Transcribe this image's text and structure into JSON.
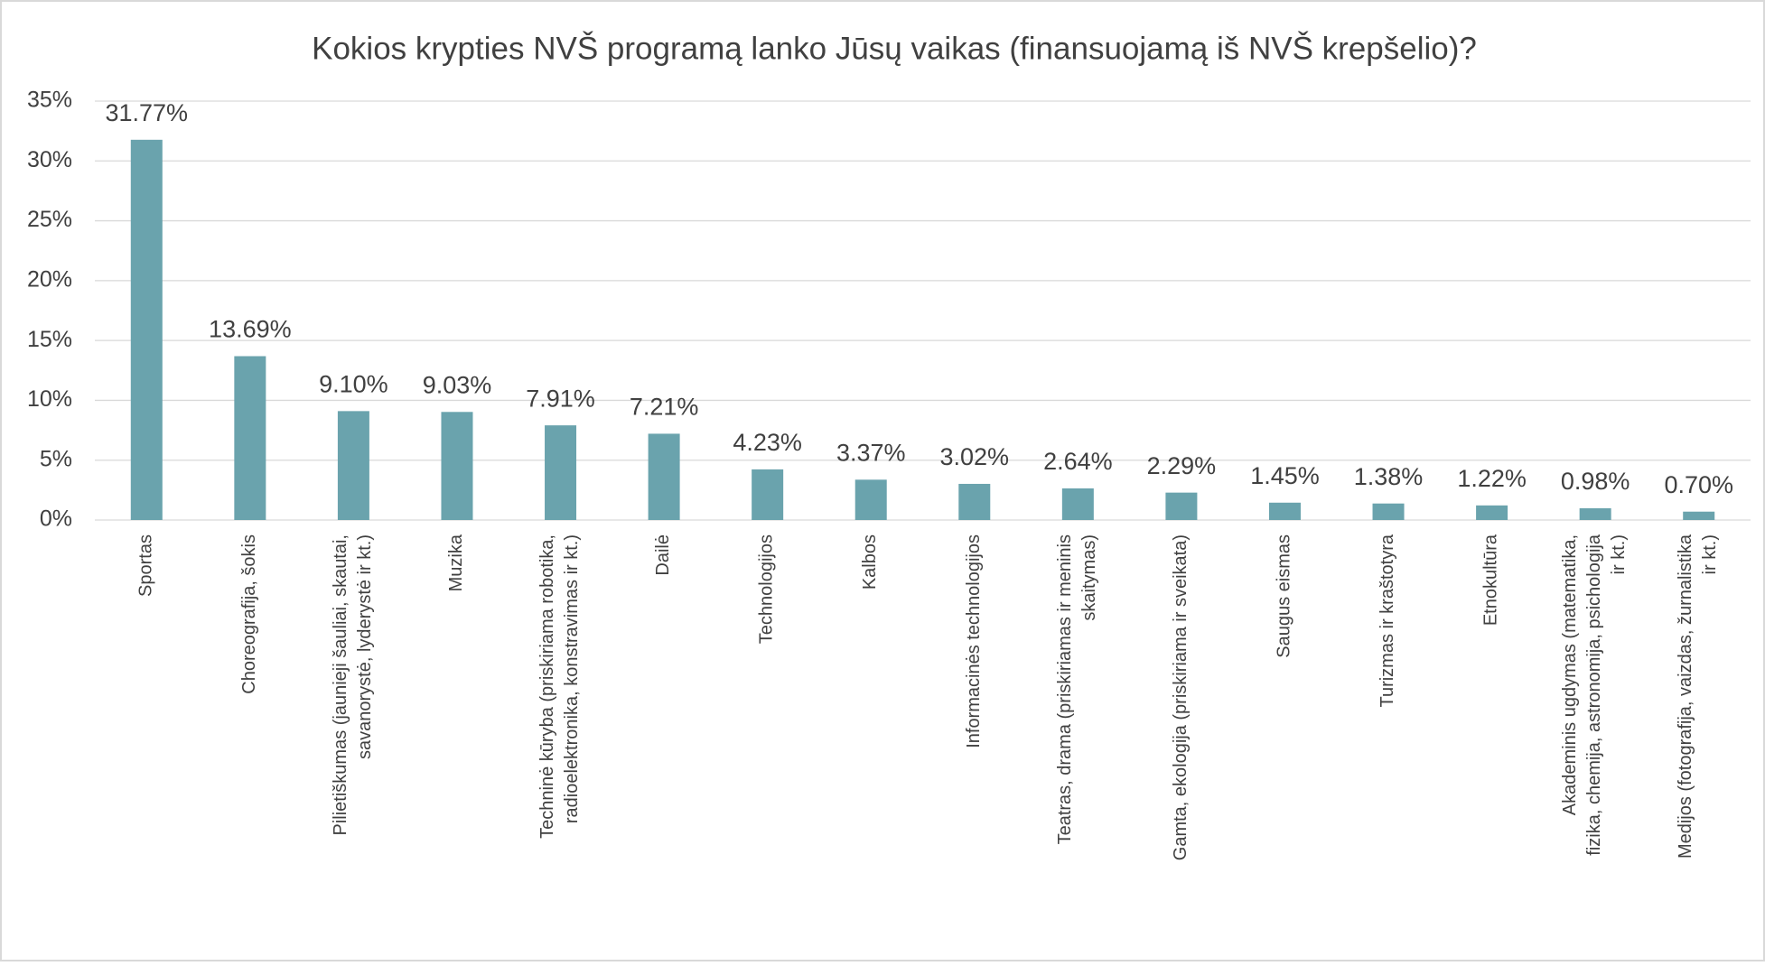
{
  "chart_data": {
    "type": "bar",
    "title": "Kokios krypties NVŠ programą lanko Jūsų vaikas (finansuojamą iš NVŠ krepšelio)?",
    "categories": [
      "Sportas",
      "Choreografija, šokis",
      "Pilietiškumas (jaunieji šauliai, skautai,\nsavanorystė, lyderystė ir kt.)",
      "Muzika",
      "Techninė kūryba (priskiriama robotika,\nradioelektronika, konstravimas ir kt.)",
      "Dailė",
      "Technologijos",
      "Kalbos",
      "Informacinės technologijos",
      "Teatras, drama (priskiriamas ir meninis\nskaitymas)",
      "Gamta, ekologija (priskiriama ir sveikata)",
      "Saugus eismas",
      "Turizmas ir kraštotyra",
      "Etnokultūra",
      "Akademinis ugdymas (matematika,\nfizika, chemija, astronomija, psichologija\nir kt.)",
      "Medijos (fotografija, vaizdas, žurnalistika\nir kt.)"
    ],
    "values": [
      31.77,
      13.69,
      9.1,
      9.03,
      7.91,
      7.21,
      4.23,
      3.37,
      3.02,
      2.64,
      2.29,
      1.45,
      1.38,
      1.22,
      0.98,
      0.7
    ],
    "value_labels": [
      "31.77%",
      "13.69%",
      "9.10%",
      "9.03%",
      "7.91%",
      "7.21%",
      "4.23%",
      "3.37%",
      "3.02%",
      "2.64%",
      "2.29%",
      "1.45%",
      "1.38%",
      "1.22%",
      "0.98%",
      "0.70%"
    ],
    "color": "#6aa3ad",
    "ylim": [
      0,
      35
    ],
    "yticks": [
      {
        "value": 0,
        "label": "0%"
      },
      {
        "value": 5,
        "label": "5%"
      },
      {
        "value": 10,
        "label": "10%"
      },
      {
        "value": 15,
        "label": "15%"
      },
      {
        "value": 20,
        "label": "20%"
      },
      {
        "value": 25,
        "label": "25%"
      },
      {
        "value": 30,
        "label": "30%"
      },
      {
        "value": 35,
        "label": "35%"
      }
    ],
    "grid": true
  }
}
